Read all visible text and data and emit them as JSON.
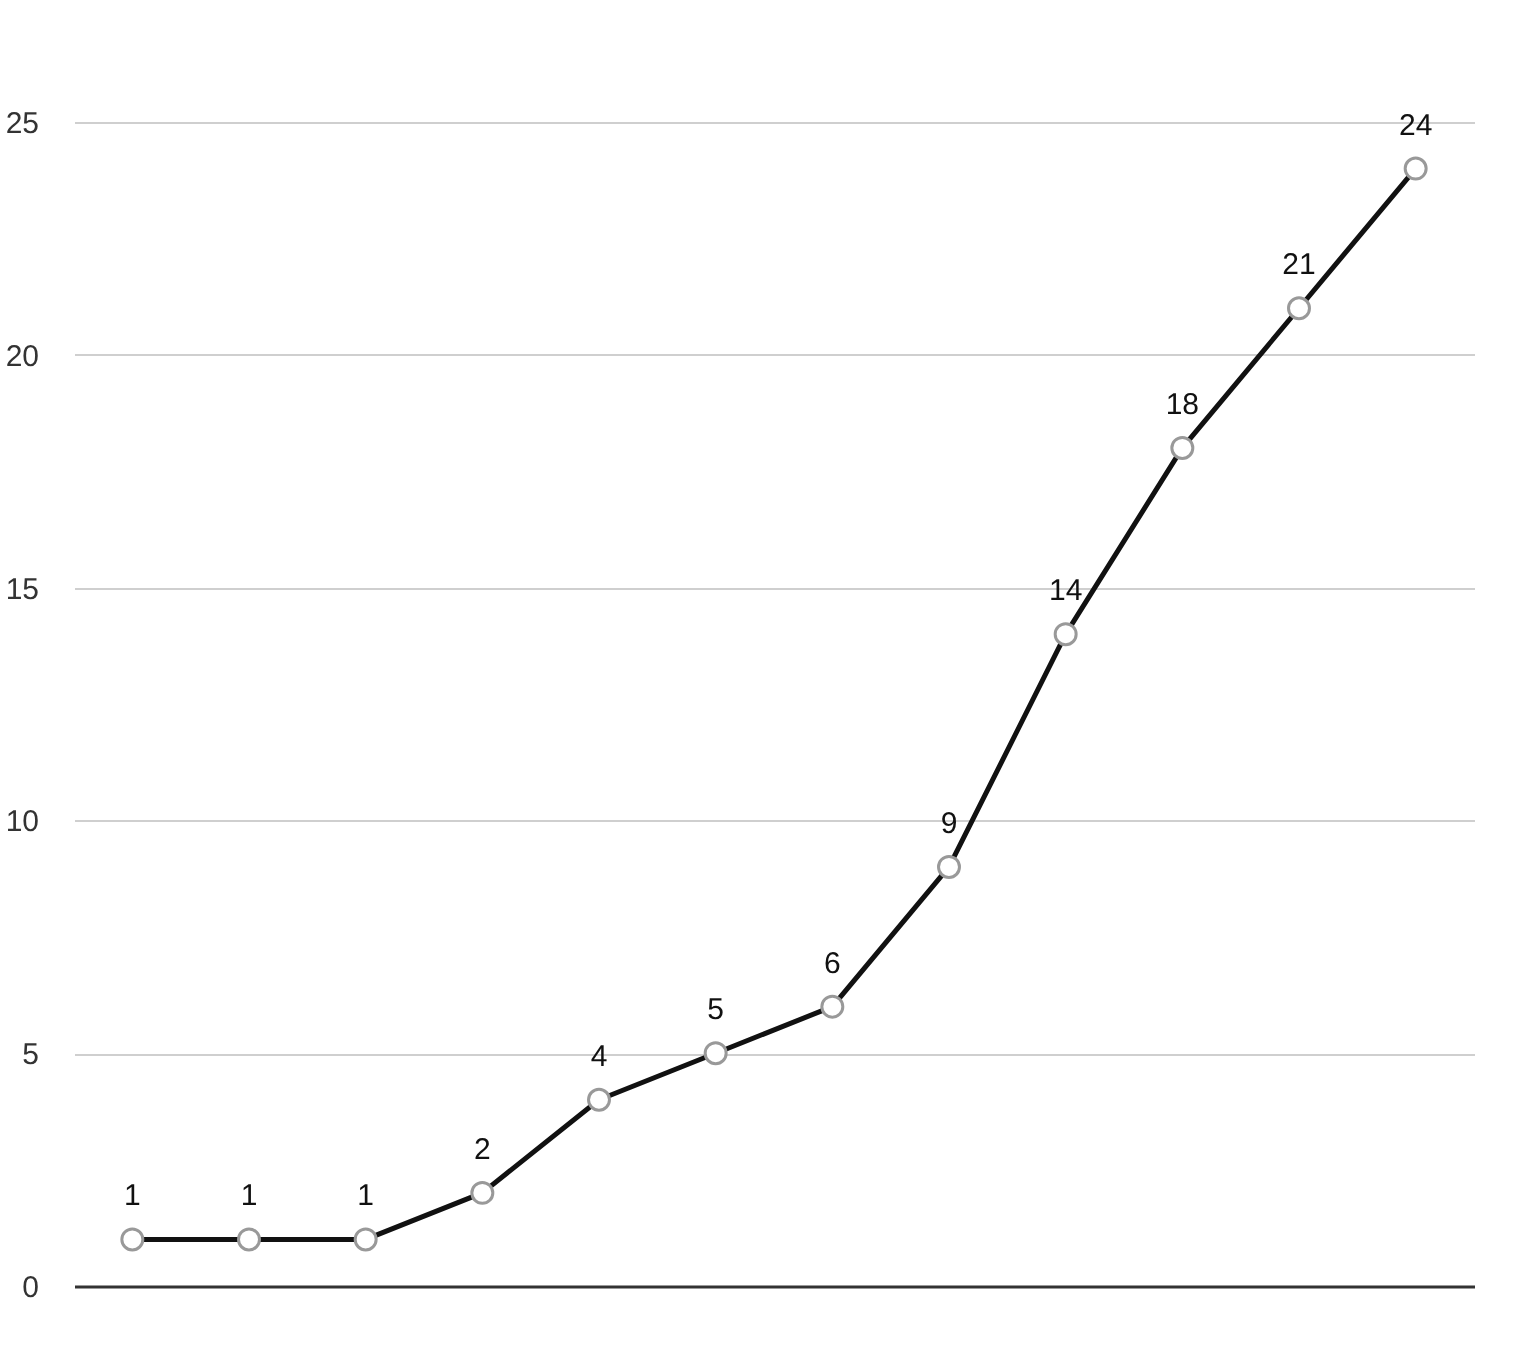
{
  "chart_data": {
    "type": "line",
    "categories": [
      null,
      null,
      null,
      null,
      null,
      null,
      null,
      null,
      null,
      null,
      null,
      null
    ],
    "series": [
      {
        "color": "#111111",
        "values": [
          1,
          1,
          1,
          2,
          4,
          5,
          6,
          9,
          14,
          18,
          21,
          24
        ]
      }
    ],
    "ylim": [
      0,
      25
    ],
    "yticks": [
      0,
      5,
      10,
      15,
      20,
      25
    ],
    "grid": "y",
    "marker": "circle",
    "data_labels": true,
    "tick_labels": "y",
    "line_style": "solid"
  }
}
